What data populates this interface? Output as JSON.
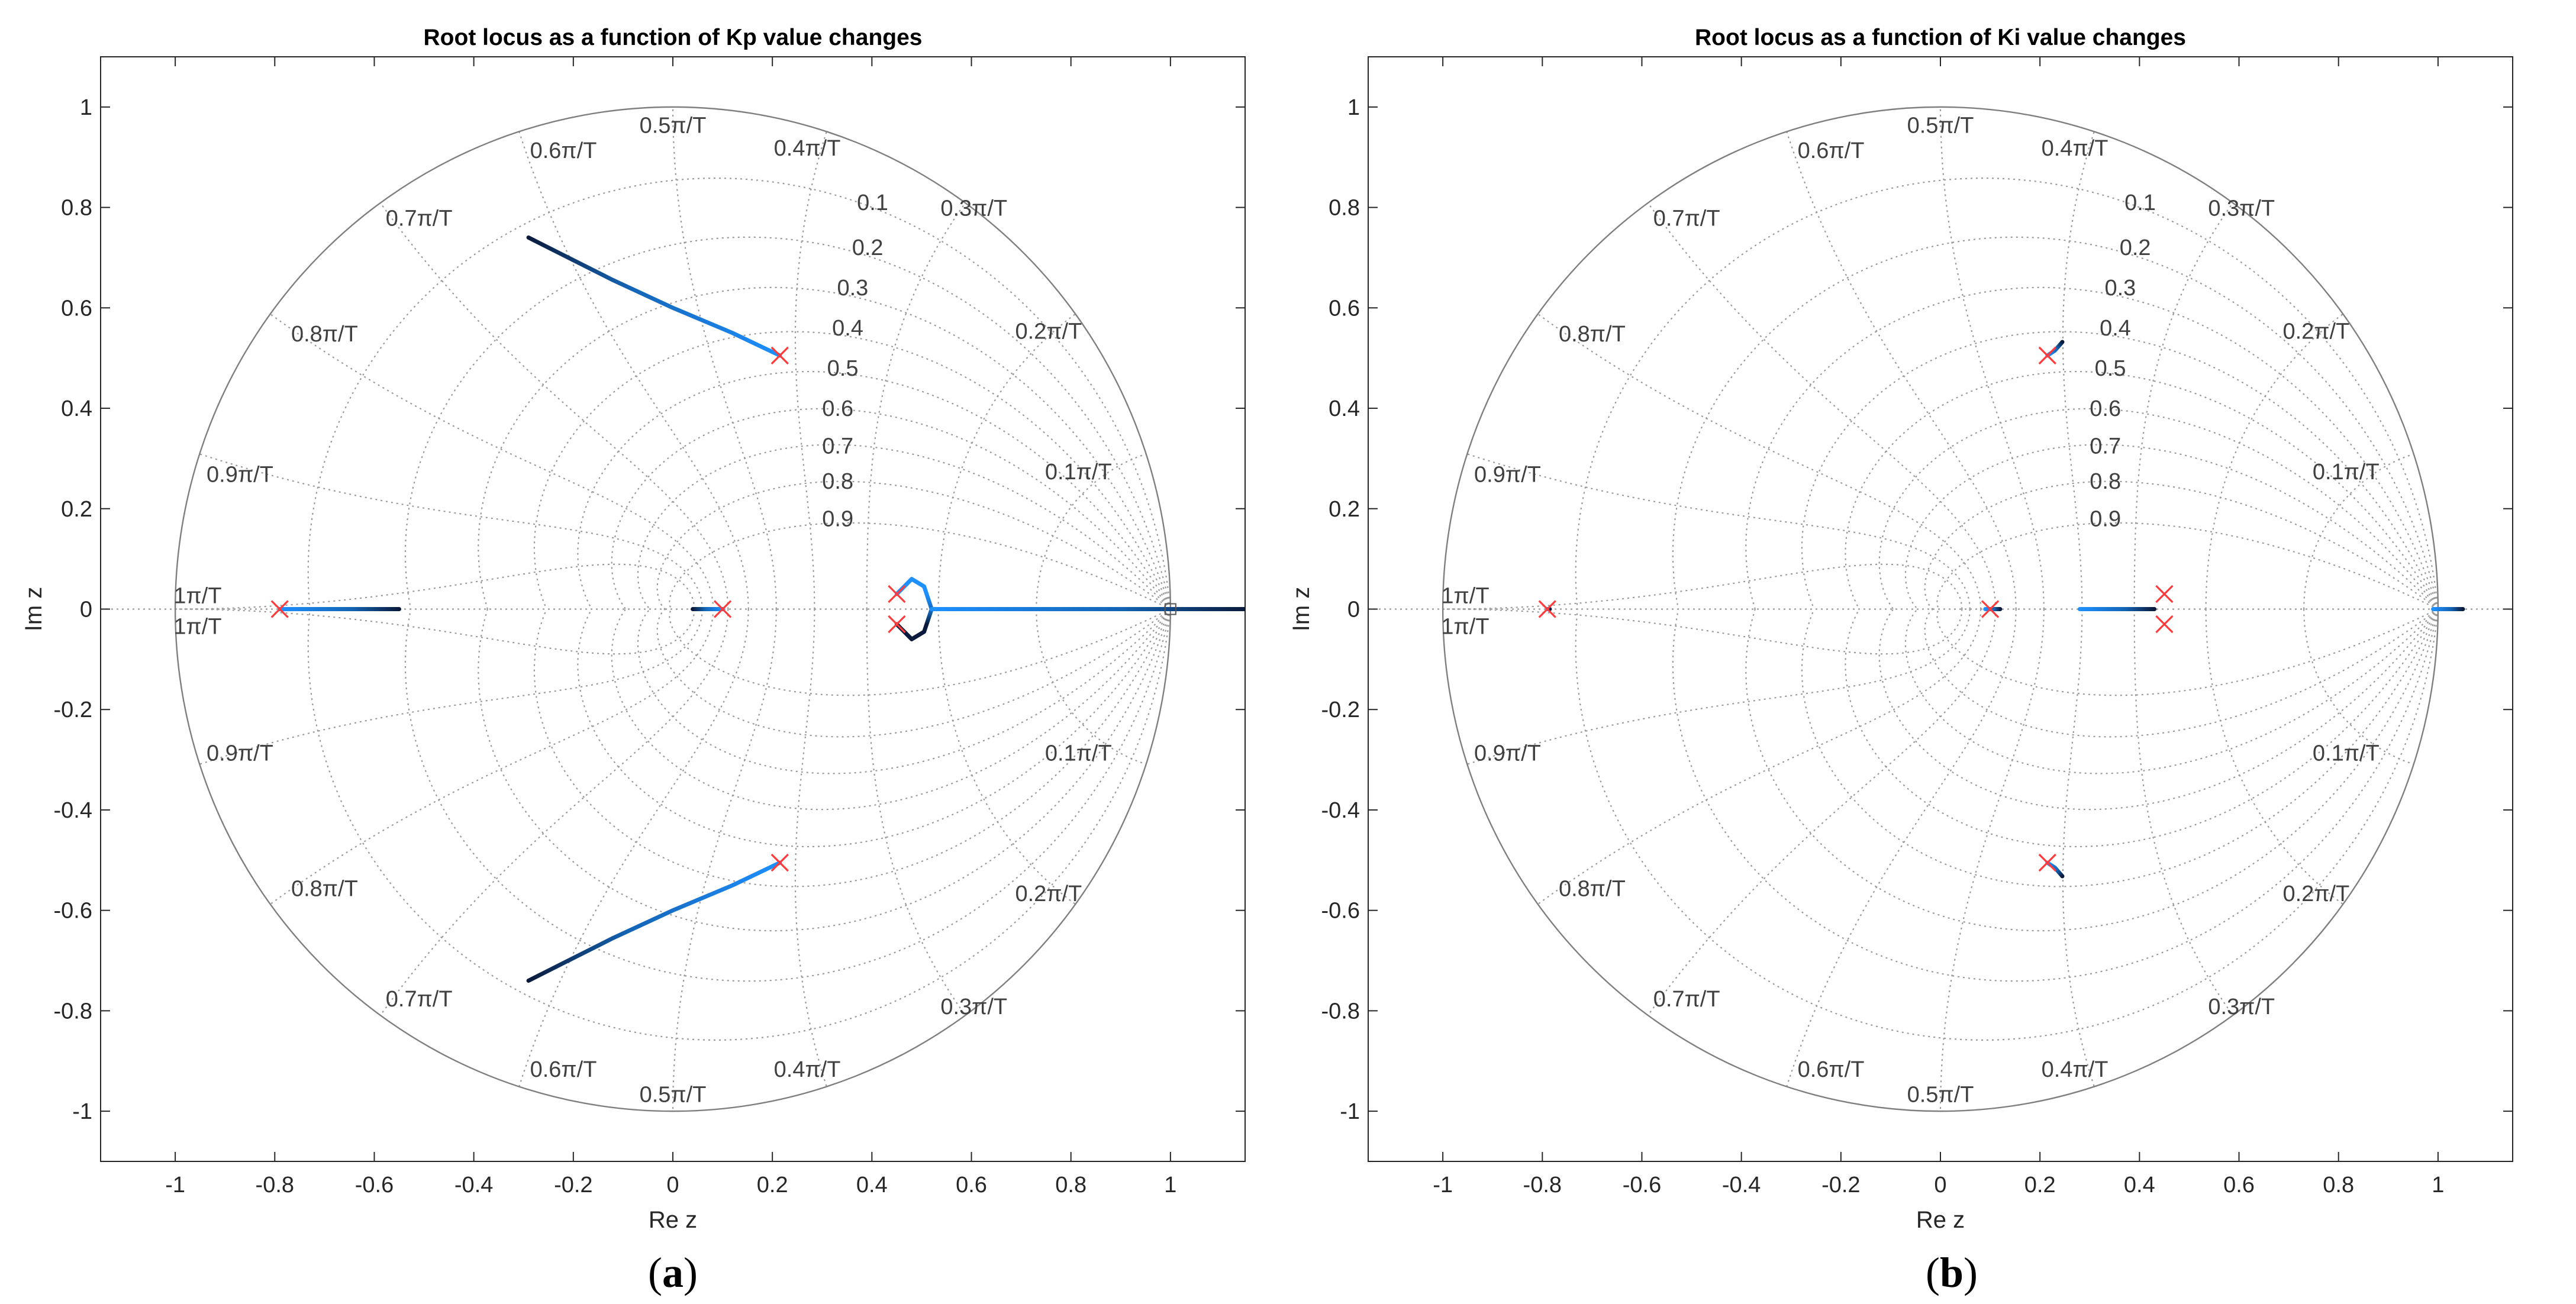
{
  "chart_data": [
    {
      "type": "line",
      "panel_label": "a",
      "title": "Root locus as a function of Kp value changes",
      "xlabel": "Re z",
      "ylabel": "Im z",
      "xlim": [
        -1.15,
        1.15
      ],
      "ylim": [
        -1.1,
        1.1
      ],
      "xticks": [
        -1,
        -0.8,
        -0.6,
        -0.4,
        -0.2,
        0,
        0.2,
        0.4,
        0.6,
        0.8,
        1
      ],
      "xtick_labels": [
        "-1",
        "-0.8",
        "-0.6",
        "-0.4",
        "-0.2",
        "0",
        "0.2",
        "0.4",
        "0.6",
        "0.8",
        "1"
      ],
      "yticks": [
        -1,
        -0.8,
        -0.6,
        -0.4,
        -0.2,
        0,
        0.2,
        0.4,
        0.6,
        0.8,
        1
      ],
      "ytick_labels": [
        "-1",
        "-0.8",
        "-0.6",
        "-0.4",
        "-0.2",
        "0",
        "0.2",
        "0.4",
        "0.6",
        "0.8",
        "1"
      ],
      "grid": "zgrid",
      "damping_labels": [
        "0.1",
        "0.2",
        "0.3",
        "0.4",
        "0.5",
        "0.6",
        "0.7",
        "0.8",
        "0.9"
      ],
      "frequency_labels": [
        "0.1π/T",
        "0.2π/T",
        "0.3π/T",
        "0.4π/T",
        "0.5π/T",
        "0.6π/T",
        "0.7π/T",
        "0.8π/T",
        "0.9π/T",
        "1π/T"
      ],
      "poles": [
        {
          "x": -0.79,
          "y": 0
        },
        {
          "x": 0.1,
          "y": 0
        },
        {
          "x": 0.215,
          "y": 0.505
        },
        {
          "x": 0.215,
          "y": -0.505
        },
        {
          "x": 0.45,
          "y": 0.03
        },
        {
          "x": 0.45,
          "y": -0.03
        }
      ],
      "zeros": [
        {
          "x": 1.0,
          "y": 0
        }
      ],
      "series": [
        {
          "name": "branch-real-left",
          "x": [
            -0.79,
            -0.72,
            -0.64,
            -0.55
          ],
          "y": [
            0,
            0,
            0,
            0
          ]
        },
        {
          "name": "branch-real-center",
          "x": [
            0.1,
            0.08,
            0.05,
            0.04
          ],
          "y": [
            0,
            0,
            0,
            0
          ]
        },
        {
          "name": "branch-complex-upper",
          "x": [
            0.215,
            0.12,
            0.0,
            -0.12,
            -0.22,
            -0.29
          ],
          "y": [
            0.505,
            0.55,
            0.6,
            0.655,
            0.705,
            0.74
          ]
        },
        {
          "name": "branch-complex-lower",
          "x": [
            0.215,
            0.12,
            0.0,
            -0.12,
            -0.22,
            -0.29
          ],
          "y": [
            -0.505,
            -0.55,
            -0.6,
            -0.655,
            -0.705,
            -0.74
          ]
        },
        {
          "name": "branch-breakin-arc",
          "x": [
            0.45,
            0.48,
            0.505,
            0.52,
            0.505,
            0.48,
            0.45
          ],
          "y": [
            0.03,
            0.06,
            0.045,
            0,
            -0.045,
            -0.06,
            -0.03
          ]
        },
        {
          "name": "branch-real-right",
          "x": [
            0.52,
            0.7,
            0.9,
            1.0,
            1.15
          ],
          "y": [
            0,
            0,
            0,
            0,
            0
          ]
        }
      ]
    },
    {
      "type": "line",
      "panel_label": "b",
      "title": "Root locus as a function of Ki value changes",
      "xlabel": "Re z",
      "ylabel": "Im z",
      "xlim": [
        -1.15,
        1.15
      ],
      "ylim": [
        -1.1,
        1.1
      ],
      "xticks": [
        -1,
        -0.8,
        -0.6,
        -0.4,
        -0.2,
        0,
        0.2,
        0.4,
        0.6,
        0.8,
        1
      ],
      "xtick_labels": [
        "-1",
        "-0.8",
        "-0.6",
        "-0.4",
        "-0.2",
        "0",
        "0.2",
        "0.4",
        "0.6",
        "0.8",
        "1"
      ],
      "yticks": [
        -1,
        -0.8,
        -0.6,
        -0.4,
        -0.2,
        0,
        0.2,
        0.4,
        0.6,
        0.8,
        1
      ],
      "ytick_labels": [
        "-1",
        "-0.8",
        "-0.6",
        "-0.4",
        "-0.2",
        "0",
        "0.2",
        "0.4",
        "0.6",
        "0.8",
        "1"
      ],
      "grid": "zgrid",
      "damping_labels": [
        "0.1",
        "0.2",
        "0.3",
        "0.4",
        "0.5",
        "0.6",
        "0.7",
        "0.8",
        "0.9"
      ],
      "frequency_labels": [
        "0.1π/T",
        "0.2π/T",
        "0.3π/T",
        "0.4π/T",
        "0.5π/T",
        "0.6π/T",
        "0.7π/T",
        "0.8π/T",
        "0.9π/T",
        "1π/T"
      ],
      "poles": [
        {
          "x": -0.79,
          "y": 0
        },
        {
          "x": 0.1,
          "y": 0
        },
        {
          "x": 0.215,
          "y": 0.505
        },
        {
          "x": 0.215,
          "y": -0.505
        },
        {
          "x": 0.45,
          "y": 0.03
        },
        {
          "x": 0.45,
          "y": -0.03
        }
      ],
      "zeros": [],
      "series": [
        {
          "name": "branch-real-left",
          "x": [
            -0.79,
            -0.785
          ],
          "y": [
            0,
            0
          ]
        },
        {
          "name": "branch-real-center",
          "x": [
            0.09,
            0.1,
            0.12
          ],
          "y": [
            0,
            0,
            0
          ]
        },
        {
          "name": "branch-complex-upper",
          "x": [
            0.215,
            0.23,
            0.245
          ],
          "y": [
            0.505,
            0.515,
            0.532
          ]
        },
        {
          "name": "branch-complex-lower",
          "x": [
            0.215,
            0.23,
            0.245
          ],
          "y": [
            -0.505,
            -0.515,
            -0.532
          ]
        },
        {
          "name": "branch-real-mid",
          "x": [
            0.28,
            0.32,
            0.36,
            0.4,
            0.43
          ],
          "y": [
            0,
            0,
            0,
            0,
            0
          ]
        },
        {
          "name": "branch-real-right",
          "x": [
            0.99,
            1.01,
            1.03,
            1.05
          ],
          "y": [
            0,
            0,
            0,
            0
          ]
        }
      ]
    }
  ]
}
